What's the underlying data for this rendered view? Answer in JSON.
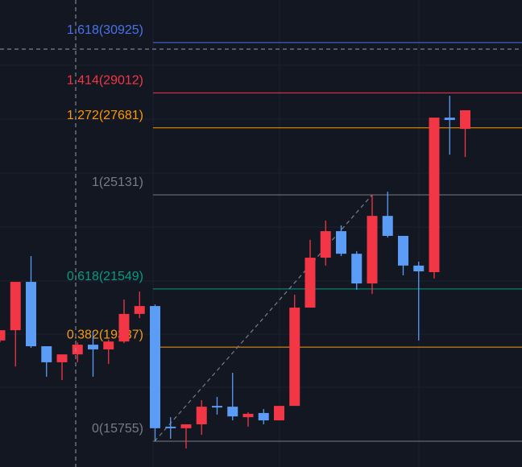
{
  "chart_data": {
    "type": "candlestick",
    "up_color": "#f23645",
    "down_color": "#5b9cf6",
    "ylim": [
      14775,
      32546
    ],
    "open": [
      19590,
      19980,
      21820,
      19370,
      18760,
      19060,
      19430,
      19250,
      19550,
      20600,
      20900,
      16310,
      16250,
      16400,
      17100,
      17070,
      16670,
      16830,
      16550,
      17100,
      20840,
      22740,
      23750,
      22890,
      21760,
      24330,
      23570,
      22440,
      22190,
      28070,
      27640
    ],
    "high": [
      19980,
      21820,
      22800,
      19370,
      19060,
      19520,
      19920,
      19620,
      21150,
      21450,
      20960,
      16670,
      16400,
      17320,
      17440,
      18360,
      16860,
      16980,
      17100,
      21330,
      23420,
      24150,
      23970,
      22990,
      25131,
      25250,
      23570,
      22590,
      28070,
      28900,
      28350
    ],
    "low": [
      19520,
      18600,
      19310,
      18210,
      18080,
      18760,
      18210,
      18700,
      19490,
      20440,
      15755,
      15850,
      15480,
      16000,
      16770,
      16550,
      16310,
      16400,
      16550,
      17100,
      20840,
      22440,
      22800,
      21520,
      21360,
      23510,
      22070,
      19590,
      21950,
      26660,
      26570
    ],
    "close": [
      19980,
      21820,
      19370,
      18760,
      19060,
      19430,
      19250,
      19550,
      20600,
      20900,
      16250,
      16250,
      16400,
      17070,
      17040,
      16700,
      16800,
      16550,
      17100,
      20840,
      22740,
      23750,
      22890,
      21760,
      24330,
      23570,
      22440,
      22220,
      28070,
      27980,
      28350
    ],
    "fib_levels": [
      {
        "label": "1.618(30925)",
        "value": 30925,
        "color": "#4a72e8"
      },
      {
        "label": "1.414(29012)",
        "value": 29012,
        "color": "#f23645"
      },
      {
        "label": "1.272(27681)",
        "value": 27681,
        "color": "#ff9800"
      },
      {
        "label": "1(25131)",
        "value": 25131,
        "color": "#787b86"
      },
      {
        "label": "0.618(21549)",
        "value": 21549,
        "color": "#089981"
      },
      {
        "label": "0.382(19337)",
        "value": 19337,
        "color": "#f39c12"
      },
      {
        "label": "0(15755)",
        "value": 15755,
        "color": "#787b86"
      }
    ]
  }
}
